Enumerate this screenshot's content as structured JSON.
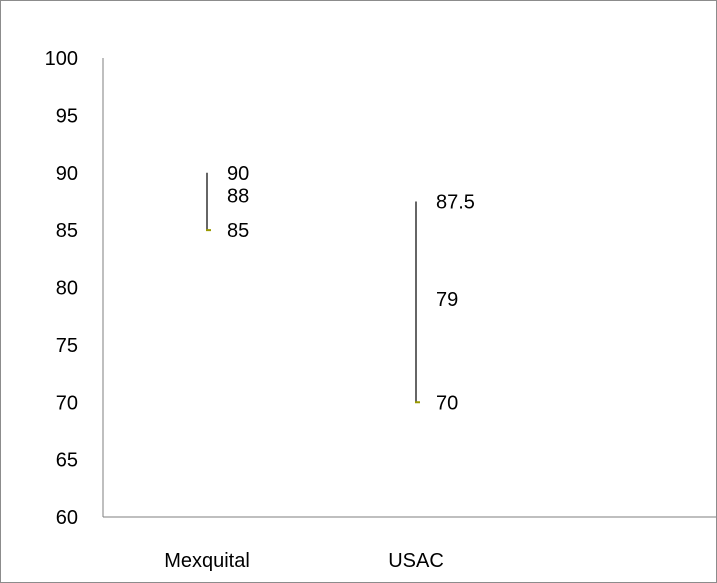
{
  "chart_data": {
    "type": "hi-lo-close",
    "title": "",
    "xlabel": "",
    "ylabel": "",
    "ylim": [
      60,
      100
    ],
    "yticks": [
      60,
      65,
      70,
      75,
      80,
      85,
      90,
      95,
      100
    ],
    "grid": false,
    "categories": [
      "Mexquital",
      "USAC"
    ],
    "series": [
      {
        "high": [
          90,
          87.5
        ],
        "mid": [
          88,
          79
        ],
        "low": [
          85,
          70
        ]
      }
    ],
    "data_labels": [
      {
        "category": "Mexquital",
        "values": [
          "90",
          "88",
          "85"
        ]
      },
      {
        "category": "USAC",
        "values": [
          "87.5",
          "79",
          "70"
        ]
      }
    ],
    "colors": {
      "line": "#000000",
      "low_marker": "#9a9a00",
      "axis": "#7f7f7f"
    }
  }
}
